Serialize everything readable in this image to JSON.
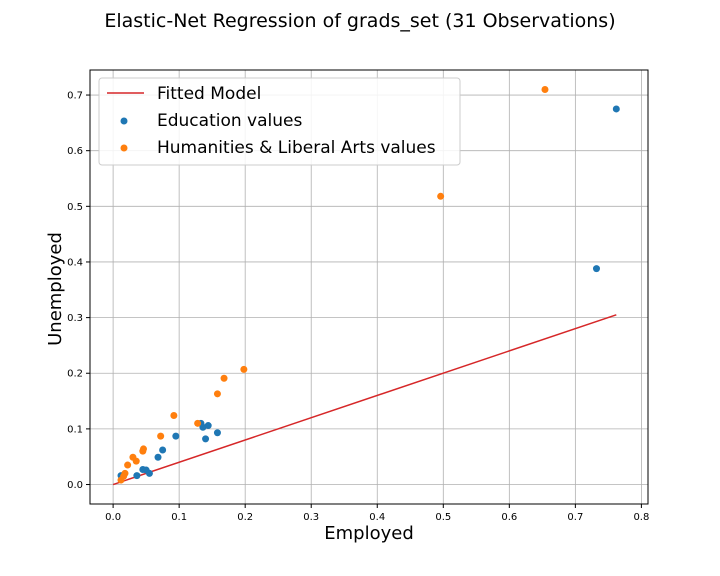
{
  "chart_data": {
    "type": "scatter",
    "title": "Elastic-Net Regression of grads_set (31 Observations)",
    "xlabel": "Employed",
    "ylabel": "Unemployed",
    "xlim": [
      -0.035,
      0.81
    ],
    "ylim": [
      -0.035,
      0.745
    ],
    "xticks": [
      0.0,
      0.1,
      0.2,
      0.3,
      0.4,
      0.5,
      0.6,
      0.7,
      0.8
    ],
    "xtick_labels": [
      "0.0",
      "0.1",
      "0.2",
      "0.3",
      "0.4",
      "0.5",
      "0.6",
      "0.7",
      "0.8"
    ],
    "yticks": [
      0.0,
      0.1,
      0.2,
      0.3,
      0.4,
      0.5,
      0.6,
      0.7
    ],
    "ytick_labels": [
      "0.0",
      "0.1",
      "0.2",
      "0.3",
      "0.4",
      "0.5",
      "0.6",
      "0.7"
    ],
    "grid": true,
    "legend_position": "top-left",
    "fitted_line": {
      "name": "Fitted Model",
      "color": "#d62728",
      "x": [
        0.0,
        0.762
      ],
      "y": [
        0.0,
        0.305
      ]
    },
    "series": [
      {
        "name": "Education values",
        "color": "#1f77b4",
        "points": [
          [
            0.012,
            0.016
          ],
          [
            0.036,
            0.016
          ],
          [
            0.045,
            0.027
          ],
          [
            0.05,
            0.026
          ],
          [
            0.055,
            0.02
          ],
          [
            0.068,
            0.049
          ],
          [
            0.075,
            0.062
          ],
          [
            0.095,
            0.087
          ],
          [
            0.133,
            0.11
          ],
          [
            0.136,
            0.103
          ],
          [
            0.14,
            0.082
          ],
          [
            0.144,
            0.106
          ],
          [
            0.158,
            0.093
          ],
          [
            0.732,
            0.388
          ],
          [
            0.762,
            0.675
          ]
        ]
      },
      {
        "name": "Humanities & Liberal Arts values",
        "color": "#ff7f0e",
        "points": [
          [
            0.012,
            0.008
          ],
          [
            0.016,
            0.015
          ],
          [
            0.018,
            0.02
          ],
          [
            0.022,
            0.035
          ],
          [
            0.03,
            0.049
          ],
          [
            0.035,
            0.042
          ],
          [
            0.045,
            0.06
          ],
          [
            0.046,
            0.064
          ],
          [
            0.072,
            0.087
          ],
          [
            0.092,
            0.124
          ],
          [
            0.128,
            0.11
          ],
          [
            0.158,
            0.163
          ],
          [
            0.168,
            0.191
          ],
          [
            0.198,
            0.207
          ],
          [
            0.496,
            0.518
          ],
          [
            0.654,
            0.71
          ]
        ]
      }
    ]
  }
}
